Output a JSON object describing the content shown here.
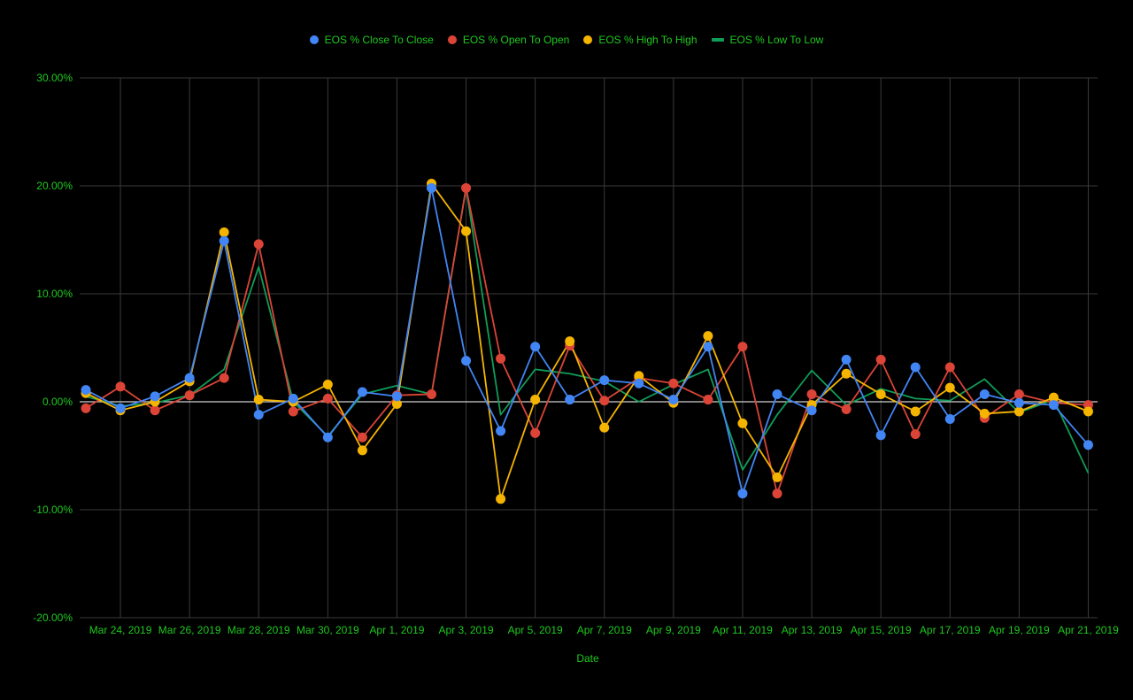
{
  "chart_data": {
    "type": "line",
    "xlabel": "Date",
    "ylabel": "",
    "ylim": [
      -20,
      30
    ],
    "grid": true,
    "legend_position": "top",
    "x": [
      "Mar 23, 2019",
      "Mar 24, 2019",
      "Mar 25, 2019",
      "Mar 26, 2019",
      "Mar 27, 2019",
      "Mar 28, 2019",
      "Mar 29, 2019",
      "Mar 30, 2019",
      "Mar 31, 2019",
      "Apr 1, 2019",
      "Apr 2, 2019",
      "Apr 3, 2019",
      "Apr 4, 2019",
      "Apr 5, 2019",
      "Apr 6, 2019",
      "Apr 7, 2019",
      "Apr 8, 2019",
      "Apr 9, 2019",
      "Apr 10, 2019",
      "Apr 11, 2019",
      "Apr 12, 2019",
      "Apr 13, 2019",
      "Apr 14, 2019",
      "Apr 15, 2019",
      "Apr 16, 2019",
      "Apr 17, 2019",
      "Apr 18, 2019",
      "Apr 19, 2019",
      "Apr 20, 2019",
      "Apr 21, 2019"
    ],
    "x_tick_labels": [
      "Mar 24, 2019",
      "Mar 26, 2019",
      "Mar 28, 2019",
      "Mar 30, 2019",
      "Apr 1, 2019",
      "Apr 3, 2019",
      "Apr 5, 2019",
      "Apr 7, 2019",
      "Apr 9, 2019",
      "Apr 11, 2019",
      "Apr 13, 2019",
      "Apr 15, 2019",
      "Apr 17, 2019",
      "Apr 19, 2019",
      "Apr 21, 2019"
    ],
    "y_tick_labels": [
      "30.00%",
      "20.00%",
      "10.00%",
      "0.00%",
      "-10.00%",
      "-20.00%"
    ],
    "y_ticks": [
      30,
      20,
      10,
      0,
      -10,
      -20
    ],
    "series": [
      {
        "name": "EOS % Close To Close",
        "color": "#4285f4",
        "marker": "dot",
        "showPoints": true,
        "values": [
          1.1,
          -0.6,
          0.5,
          2.2,
          14.9,
          -1.2,
          0.3,
          -3.3,
          0.9,
          0.5,
          19.8,
          3.8,
          -2.7,
          5.1,
          0.2,
          2.0,
          1.7,
          0.2,
          5.1,
          -8.5,
          0.7,
          -0.8,
          3.9,
          -3.1,
          3.2,
          -1.6,
          0.7,
          -0.1,
          -0.3,
          -4.0
        ]
      },
      {
        "name": "EOS % Open To Open",
        "color": "#db4437",
        "marker": "dot",
        "showPoints": true,
        "values": [
          -0.6,
          1.4,
          -0.8,
          0.6,
          2.2,
          14.6,
          -0.9,
          0.3,
          -3.3,
          0.6,
          0.7,
          19.8,
          4.0,
          -2.9,
          5.2,
          0.1,
          2.2,
          1.7,
          0.2,
          5.1,
          -8.5,
          0.7,
          -0.7,
          3.9,
          -3.0,
          3.2,
          -1.5,
          0.7,
          -0.1,
          -0.3
        ]
      },
      {
        "name": "EOS % High To High",
        "color": "#f4b400",
        "marker": "dot",
        "showPoints": true,
        "values": [
          0.8,
          -0.8,
          0.0,
          1.9,
          15.7,
          0.2,
          0.0,
          1.6,
          -4.5,
          -0.2,
          20.2,
          15.8,
          -9.0,
          0.2,
          5.6,
          -2.4,
          2.4,
          -0.1,
          6.1,
          -2.0,
          -7.0,
          -0.3,
          2.6,
          0.7,
          -0.9,
          1.3,
          -1.1,
          -0.9,
          0.4,
          -0.9
        ]
      },
      {
        "name": "EOS % Low To Low",
        "color": "#0f9d58",
        "marker": "bar",
        "showPoints": false,
        "values": [
          0.5,
          -0.4,
          -0.1,
          0.6,
          3.0,
          12.5,
          0.0,
          -3.2,
          0.7,
          1.5,
          0.7,
          19.8,
          -1.2,
          3.0,
          2.6,
          1.9,
          0.0,
          1.6,
          3.0,
          -6.3,
          -1.2,
          2.9,
          -0.3,
          1.2,
          0.3,
          0.1,
          2.1,
          -1.0,
          0.2,
          -6.6
        ]
      }
    ]
  }
}
